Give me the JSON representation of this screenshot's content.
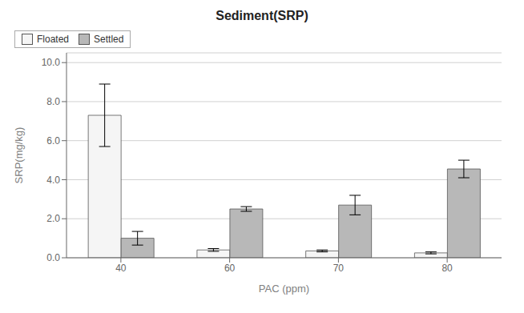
{
  "chart_data": {
    "type": "bar",
    "title": "Sediment(SRP)",
    "xlabel": "PAC (ppm)",
    "ylabel": "SRP(mg/kg)",
    "categories": [
      40,
      60,
      70,
      80
    ],
    "series": [
      {
        "name": "Floated",
        "color": "#f5f5f5",
        "values": [
          7.3,
          0.4,
          0.35,
          0.25
        ],
        "errors": [
          1.6,
          0.07,
          0.05,
          0.05
        ]
      },
      {
        "name": "Settled",
        "color": "#b8b8b8",
        "values": [
          1.0,
          2.5,
          2.7,
          4.55
        ],
        "errors": [
          0.35,
          0.12,
          0.5,
          0.45
        ]
      }
    ],
    "ylim": [
      0,
      10.5
    ],
    "yticks": [
      {
        "value": 0.0,
        "label": "0.0"
      },
      {
        "value": 2.0,
        "label": "2.0"
      },
      {
        "value": 4.0,
        "label": "4.0"
      },
      {
        "value": 6.0,
        "label": "6.0"
      },
      {
        "value": 8.0,
        "label": "8.0"
      },
      {
        "value": 10.0,
        "label": "10.0"
      }
    ],
    "grid": true,
    "legend": "upper right"
  }
}
